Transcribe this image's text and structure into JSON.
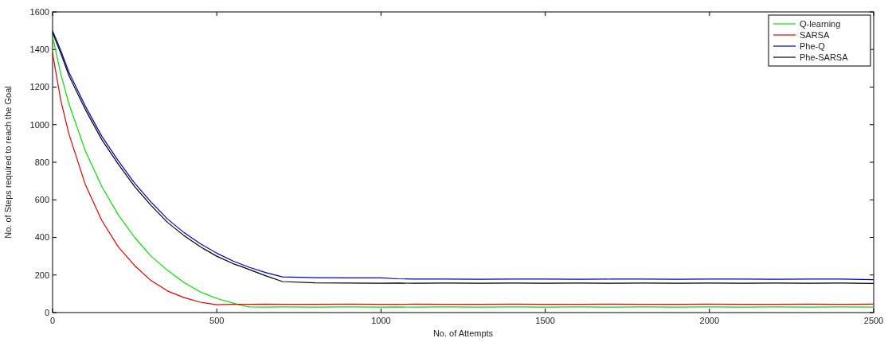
{
  "chart_data": {
    "type": "line",
    "xlabel": "No. of Attempts",
    "ylabel": "No. of Steps required to reach the Goal",
    "xlim": [
      0,
      2500
    ],
    "ylim": [
      0,
      1600
    ],
    "xticks": [
      0,
      500,
      1000,
      1500,
      2000,
      2500
    ],
    "yticks": [
      0,
      200,
      400,
      600,
      800,
      1000,
      1200,
      1400,
      1600
    ],
    "grid": false,
    "legend": "top right",
    "marker": "none",
    "line_style": "solid",
    "x": [
      0,
      25,
      50,
      100,
      150,
      200,
      250,
      300,
      350,
      400,
      450,
      500,
      550,
      575,
      600,
      650,
      700,
      800,
      900,
      1000,
      1050,
      1100,
      1200,
      1300,
      1400,
      1500,
      1600,
      1700,
      1800,
      1900,
      2000,
      2100,
      2200,
      2300,
      2400,
      2500
    ],
    "series": [
      {
        "name": "Q-learning",
        "color": "#00e000",
        "values": [
          1470,
          1270,
          1110,
          860,
          670,
          520,
          400,
          300,
          225,
          160,
          110,
          75,
          50,
          38,
          30,
          29,
          30,
          29,
          30,
          29,
          30,
          29,
          30,
          29,
          30,
          29,
          30,
          29,
          30,
          29,
          30,
          29,
          30,
          29,
          30,
          29
        ]
      },
      {
        "name": "SARSA",
        "color": "#e00000",
        "values": [
          1380,
          1130,
          950,
          680,
          490,
          350,
          250,
          170,
          115,
          80,
          55,
          42,
          44,
          44,
          44,
          45,
          44,
          44,
          45,
          44,
          44,
          45,
          44,
          44,
          45,
          44,
          44,
          45,
          44,
          44,
          45,
          44,
          44,
          45,
          44,
          45
        ]
      },
      {
        "name": "Phe-Q",
        "color": "#0000c0",
        "values": [
          1500,
          1395,
          1278,
          1098,
          938,
          808,
          688,
          588,
          498,
          426,
          366,
          316,
          274,
          257,
          240,
          212,
          190,
          186,
          185,
          185,
          180,
          178,
          178,
          177,
          178,
          178,
          177,
          178,
          178,
          177,
          178,
          178,
          177,
          178,
          178,
          175
        ]
      },
      {
        "name": "Phe-SARSA",
        "color": "#000000",
        "values": [
          1490,
          1380,
          1260,
          1080,
          920,
          790,
          670,
          570,
          480,
          410,
          350,
          300,
          260,
          245,
          228,
          195,
          165,
          158,
          157,
          156,
          157,
          156,
          157,
          156,
          157,
          156,
          157,
          156,
          157,
          156,
          157,
          156,
          157,
          156,
          157,
          155
        ]
      }
    ]
  }
}
